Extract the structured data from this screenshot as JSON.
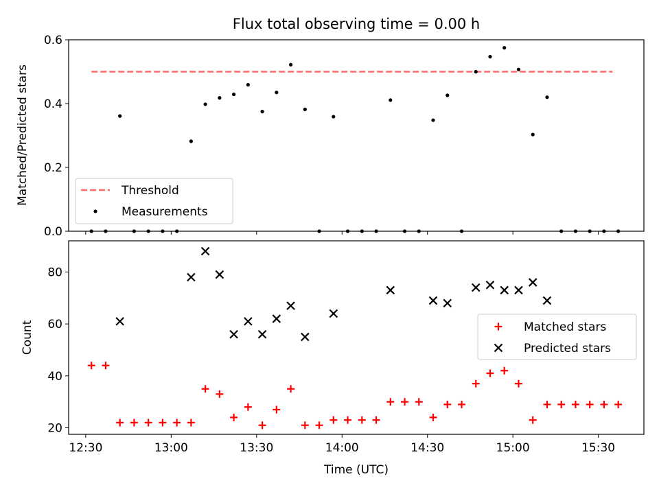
{
  "title": "Flux total observing time = 0.00 h",
  "colors": {
    "threshold": "#ff6b6b",
    "measurements": "#000000",
    "matched": "#ff0000",
    "predicted": "#000000"
  },
  "chart_data": [
    {
      "type": "scatter",
      "ylabel": "Matched/Predicted stars",
      "ylim": [
        0,
        0.6
      ],
      "yticks": [
        "0.0",
        "0.2",
        "0.4",
        "0.6"
      ],
      "legend_position": "lower-left",
      "threshold": {
        "name": "Threshold",
        "value": 0.5,
        "x": [
          "12:32",
          "15:35"
        ]
      },
      "series": [
        {
          "name": "Measurements",
          "points": [
            [
              "12:32",
              0.0
            ],
            [
              "12:37",
              0.0
            ],
            [
              "12:42",
              0.361
            ],
            [
              "12:47",
              0.0
            ],
            [
              "12:52",
              0.0
            ],
            [
              "12:57",
              0.0
            ],
            [
              "13:02",
              0.0
            ],
            [
              "13:07",
              0.282
            ],
            [
              "13:12",
              0.398
            ],
            [
              "13:17",
              0.418
            ],
            [
              "13:22",
              0.429
            ],
            [
              "13:27",
              0.459
            ],
            [
              "13:32",
              0.375
            ],
            [
              "13:37",
              0.435
            ],
            [
              "13:42",
              0.522
            ],
            [
              "13:47",
              0.382
            ],
            [
              "13:52",
              0.0
            ],
            [
              "13:57",
              0.359
            ],
            [
              "14:02",
              0.0
            ],
            [
              "14:07",
              0.0
            ],
            [
              "14:12",
              0.0
            ],
            [
              "14:17",
              0.411
            ],
            [
              "14:22",
              0.0
            ],
            [
              "14:27",
              0.0
            ],
            [
              "14:32",
              0.348
            ],
            [
              "14:37",
              0.426
            ],
            [
              "14:42",
              0.0
            ],
            [
              "14:47",
              0.5
            ],
            [
              "14:52",
              0.547
            ],
            [
              "14:57",
              0.575
            ],
            [
              "15:02",
              0.507
            ],
            [
              "15:07",
              0.303
            ],
            [
              "15:12",
              0.42
            ],
            [
              "15:17",
              0.0
            ],
            [
              "15:22",
              0.0
            ],
            [
              "15:27",
              0.0
            ],
            [
              "15:32",
              0.0
            ],
            [
              "15:37",
              0.0
            ]
          ]
        }
      ]
    },
    {
      "type": "scatter",
      "xlabel": "Time (UTC)",
      "ylabel": "Count",
      "ylim": [
        17.5,
        92
      ],
      "yticks": [
        "20",
        "40",
        "60",
        "80"
      ],
      "xlim": [
        "12:24",
        "15:46"
      ],
      "xticks": [
        "12:30",
        "13:00",
        "13:30",
        "14:00",
        "14:30",
        "15:00",
        "15:30"
      ],
      "legend_position": "center-right",
      "series": [
        {
          "name": "Matched stars",
          "marker": "+",
          "points": [
            [
              "12:32",
              44
            ],
            [
              "12:37",
              44
            ],
            [
              "12:42",
              22
            ],
            [
              "12:47",
              22
            ],
            [
              "12:52",
              22
            ],
            [
              "12:57",
              22
            ],
            [
              "13:02",
              22
            ],
            [
              "13:07",
              22
            ],
            [
              "13:12",
              35
            ],
            [
              "13:17",
              33
            ],
            [
              "13:22",
              24
            ],
            [
              "13:27",
              28
            ],
            [
              "13:32",
              21
            ],
            [
              "13:37",
              27
            ],
            [
              "13:42",
              35
            ],
            [
              "13:47",
              21
            ],
            [
              "13:52",
              21
            ],
            [
              "13:57",
              23
            ],
            [
              "14:02",
              23
            ],
            [
              "14:07",
              23
            ],
            [
              "14:12",
              23
            ],
            [
              "14:17",
              30
            ],
            [
              "14:22",
              30
            ],
            [
              "14:27",
              30
            ],
            [
              "14:32",
              24
            ],
            [
              "14:37",
              29
            ],
            [
              "14:42",
              29
            ],
            [
              "14:47",
              37
            ],
            [
              "14:52",
              41
            ],
            [
              "14:57",
              42
            ],
            [
              "15:02",
              37
            ],
            [
              "15:07",
              23
            ],
            [
              "15:12",
              29
            ],
            [
              "15:17",
              29
            ],
            [
              "15:22",
              29
            ],
            [
              "15:27",
              29
            ],
            [
              "15:32",
              29
            ],
            [
              "15:37",
              29
            ]
          ]
        },
        {
          "name": "Predicted stars",
          "marker": "x",
          "points": [
            [
              "12:42",
              61
            ],
            [
              "13:07",
              78
            ],
            [
              "13:12",
              88
            ],
            [
              "13:17",
              79
            ],
            [
              "13:22",
              56
            ],
            [
              "13:27",
              61
            ],
            [
              "13:32",
              56
            ],
            [
              "13:37",
              62
            ],
            [
              "13:42",
              67
            ],
            [
              "13:47",
              55
            ],
            [
              "13:57",
              64
            ],
            [
              "14:17",
              73
            ],
            [
              "14:32",
              69
            ],
            [
              "14:37",
              68
            ],
            [
              "14:47",
              74
            ],
            [
              "14:52",
              75
            ],
            [
              "14:57",
              73
            ],
            [
              "15:02",
              73
            ],
            [
              "15:07",
              76
            ],
            [
              "15:12",
              69
            ]
          ]
        }
      ]
    }
  ]
}
